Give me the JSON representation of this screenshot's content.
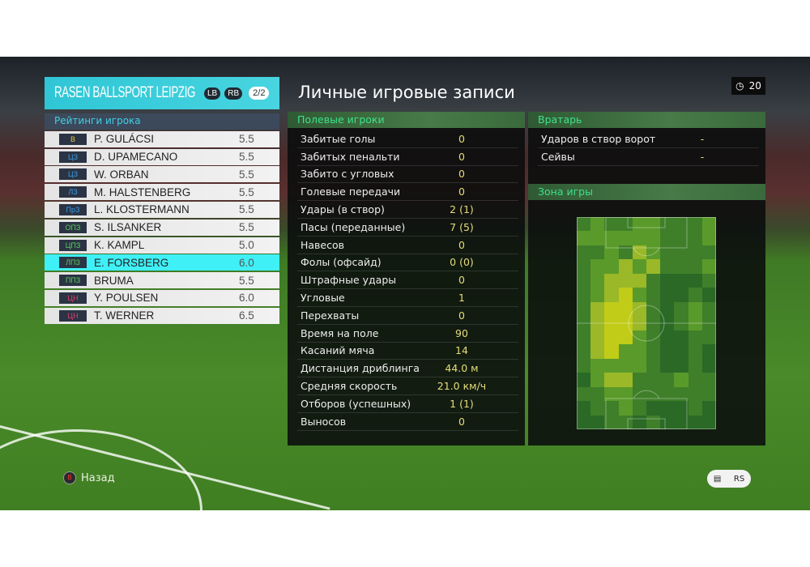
{
  "team": {
    "name": "RASEN BALLSPORT LEIPZIG",
    "lb": "LB",
    "rb": "RB",
    "page": "2/2"
  },
  "ratings_header": "Рейтинги игрока",
  "players": [
    {
      "pos": "В",
      "pos_color": "#e8c43a",
      "name": "P. GULÁCSI",
      "rating": "5.5"
    },
    {
      "pos": "ЦЗ",
      "pos_color": "#3a9ee8",
      "name": "D. UPAMECANO",
      "rating": "5.5"
    },
    {
      "pos": "ЦЗ",
      "pos_color": "#3a9ee8",
      "name": "W. ORBAN",
      "rating": "5.5"
    },
    {
      "pos": "ЛЗ",
      "pos_color": "#3a9ee8",
      "name": "M. HALSTENBERG",
      "rating": "5.5"
    },
    {
      "pos": "ПрЗ",
      "pos_color": "#3a9ee8",
      "name": "L. KLOSTERMANN",
      "rating": "5.5"
    },
    {
      "pos": "ОПЗ",
      "pos_color": "#5ad05a",
      "name": "S. ILSANKER",
      "rating": "5.5"
    },
    {
      "pos": "ЦПЗ",
      "pos_color": "#5ad05a",
      "name": "K. KAMPL",
      "rating": "5.0"
    },
    {
      "pos": "ЛПЗ",
      "pos_color": "#5ad05a",
      "name": "E. FORSBERG",
      "rating": "6.0",
      "selected": true
    },
    {
      "pos": "ППЗ",
      "pos_color": "#5ad05a",
      "name": "BRUMA",
      "rating": "5.5"
    },
    {
      "pos": "ЦН",
      "pos_color": "#e83a6a",
      "name": "Y. POULSEN",
      "rating": "6.0"
    },
    {
      "pos": "ЦН",
      "pos_color": "#e83a6a",
      "name": "T. WERNER",
      "rating": "6.5"
    }
  ],
  "title": "Личные игровые записи",
  "timer": {
    "icon": "clock-icon",
    "value": "20"
  },
  "field_players": {
    "header": "Полевые игроки",
    "stats": [
      {
        "label": "Забитые голы",
        "value": "0"
      },
      {
        "label": "Забитых пенальти",
        "value": "0"
      },
      {
        "label": "Забито с угловых",
        "value": "0"
      },
      {
        "label": "Голевые передачи",
        "value": "0"
      },
      {
        "label": "Удары (в створ)",
        "value": "2 (1)"
      },
      {
        "label": "Пасы (переданные)",
        "value": "7 (5)"
      },
      {
        "label": "Навесов",
        "value": "0"
      },
      {
        "label": "Фолы (офсайд)",
        "value": "0 (0)"
      },
      {
        "label": "Штрафные удары",
        "value": "0"
      },
      {
        "label": "Угловые",
        "value": "1"
      },
      {
        "label": "Перехваты",
        "value": "0"
      },
      {
        "label": "Время на поле",
        "value": "90"
      },
      {
        "label": "Касаний мяча",
        "value": "14"
      },
      {
        "label": "Дистанция дриблинга",
        "value": "44.0 м"
      },
      {
        "label": "Средняя скорость",
        "value": "21.0 км/ч"
      },
      {
        "label": "Отборов (успешных)",
        "value": "1 (1)"
      },
      {
        "label": "Выносов",
        "value": "0"
      }
    ]
  },
  "goalkeeper": {
    "header": "Вратарь",
    "stats": [
      {
        "label": "Ударов в створ ворот",
        "value": "-"
      },
      {
        "label": "Сейвы",
        "value": "-"
      }
    ]
  },
  "zone": {
    "header": "Зона игры",
    "palette": [
      "#2a6a26",
      "#3f7f2a",
      "#5a9a2a",
      "#9ab828",
      "#c0cc18"
    ],
    "heat": [
      [
        1,
        2,
        1,
        1,
        2,
        2,
        1,
        1,
        1,
        2
      ],
      [
        2,
        2,
        2,
        2,
        2,
        2,
        1,
        1,
        1,
        2
      ],
      [
        1,
        1,
        2,
        1,
        3,
        2,
        1,
        1,
        1,
        1
      ],
      [
        1,
        2,
        2,
        3,
        2,
        3,
        1,
        1,
        1,
        2
      ],
      [
        1,
        2,
        3,
        3,
        3,
        1,
        0,
        0,
        0,
        1
      ],
      [
        1,
        2,
        3,
        4,
        2,
        1,
        0,
        0,
        1,
        0
      ],
      [
        1,
        3,
        4,
        4,
        3,
        1,
        0,
        1,
        2,
        1
      ],
      [
        1,
        3,
        4,
        4,
        3,
        1,
        0,
        1,
        2,
        1
      ],
      [
        1,
        3,
        4,
        4,
        2,
        1,
        0,
        0,
        1,
        1
      ],
      [
        1,
        3,
        4,
        2,
        2,
        1,
        0,
        0,
        1,
        0
      ],
      [
        1,
        2,
        2,
        2,
        2,
        1,
        0,
        0,
        1,
        0
      ],
      [
        0,
        2,
        3,
        3,
        1,
        1,
        1,
        2,
        1,
        1
      ],
      [
        1,
        1,
        2,
        2,
        1,
        1,
        1,
        1,
        1,
        1
      ],
      [
        0,
        1,
        1,
        2,
        1,
        0,
        0,
        0,
        1,
        0
      ],
      [
        0,
        0,
        1,
        1,
        0,
        1,
        0,
        0,
        0,
        0
      ]
    ]
  },
  "footer": {
    "back_button": "B",
    "back_label": "Назад",
    "chat_icon": "chat-icon",
    "rs_icon": "RS"
  }
}
